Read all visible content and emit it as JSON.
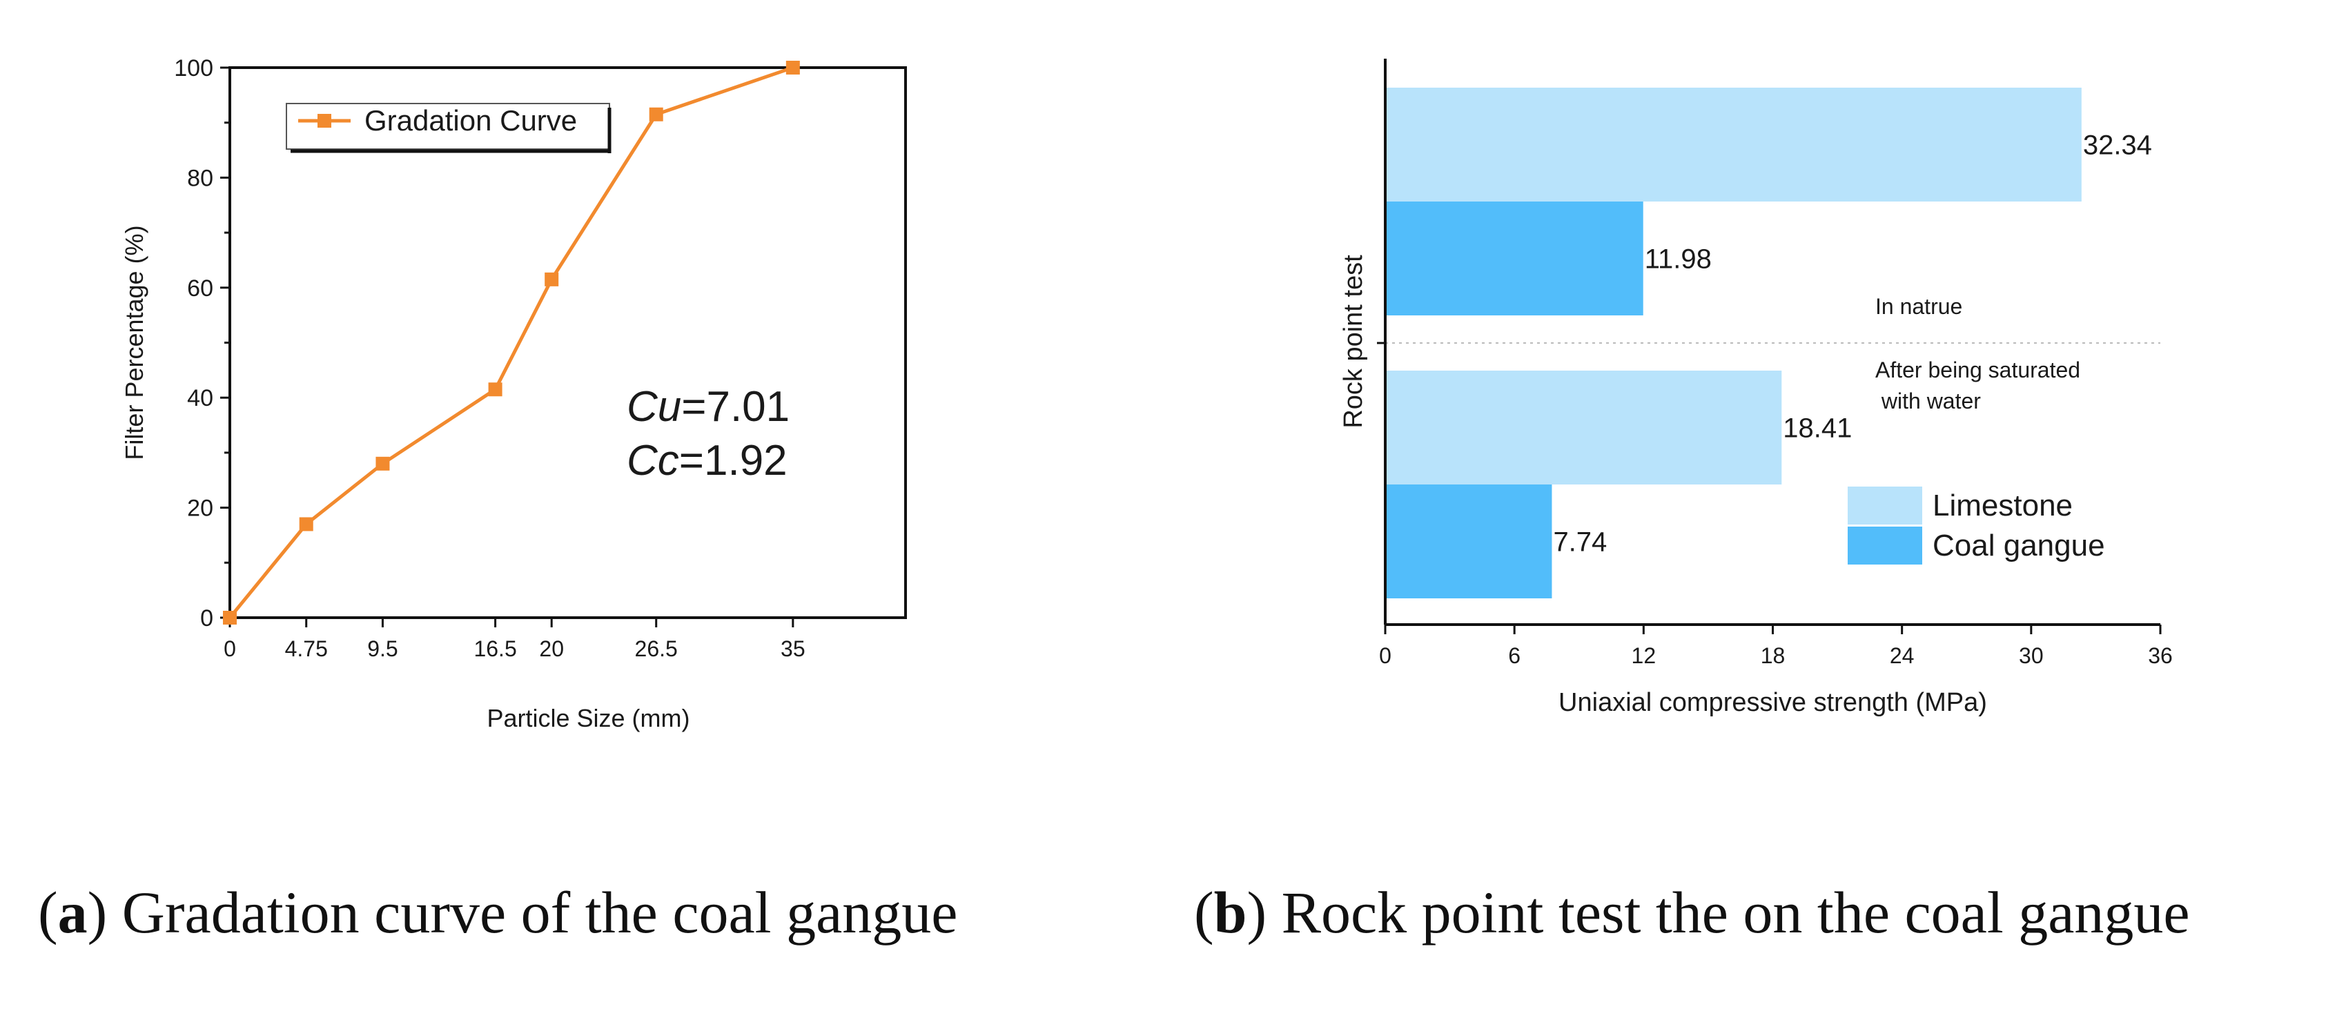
{
  "chart_data": [
    {
      "type": "line",
      "title": "",
      "xlabel": "Particle Size (mm)",
      "ylabel": "Filter Percentage (%)",
      "xlim": [
        0,
        42
      ],
      "ylim": [
        0,
        100
      ],
      "x_ticks": [
        0,
        4.75,
        9.5,
        16.5,
        20,
        26.5,
        35
      ],
      "x_tick_labels": [
        "0",
        "4.75",
        "9.5",
        "16.5",
        "20",
        "26.5",
        "35"
      ],
      "y_ticks": [
        0,
        20,
        40,
        60,
        80,
        100
      ],
      "y_tick_labels": [
        "0",
        "20",
        "40",
        "60",
        "80",
        "100"
      ],
      "series": [
        {
          "name": "Gradation Curve",
          "color": "#f28a2e",
          "marker": "square",
          "x": [
            0,
            4.75,
            9.5,
            16.5,
            20,
            26.5,
            35
          ],
          "y": [
            0,
            17,
            28,
            41.5,
            61.5,
            91.5,
            100
          ]
        }
      ],
      "legend": {
        "position": "top-left",
        "entries": [
          "Gradation Curve"
        ]
      },
      "annotations": [
        {
          "name": "Cu",
          "value": "=7.01"
        },
        {
          "name": "Cc",
          "value": "=1.92"
        }
      ]
    },
    {
      "type": "bar",
      "orientation": "horizontal",
      "xlabel": "Uniaxial compressive strength (MPa)",
      "ylabel": "Rock point test",
      "xlim": [
        0,
        36
      ],
      "x_ticks": [
        0,
        6,
        12,
        18,
        24,
        30,
        36
      ],
      "x_tick_labels": [
        "0",
        "6",
        "12",
        "18",
        "24",
        "30",
        "36"
      ],
      "groups": [
        {
          "label_lines": [
            "In natrue"
          ]
        },
        {
          "label_lines": [
            "After being saturated",
            " with water"
          ]
        }
      ],
      "series": [
        {
          "name": "Limestone",
          "color": "#b8e3fb",
          "values": [
            32.34,
            18.41
          ],
          "labels": [
            "32.34",
            "18.41"
          ]
        },
        {
          "name": "Coal gangue",
          "color": "#52bdfa",
          "values": [
            11.98,
            7.74
          ],
          "labels": [
            "11.98",
            "7.74"
          ]
        }
      ],
      "legend": {
        "position": "bottom-right",
        "entries": [
          "Limestone",
          "Coal gangue"
        ]
      }
    }
  ],
  "captions": {
    "a": {
      "letter": "a",
      "text": " Gradation curve of the coal gangue"
    },
    "b": {
      "letter": "b",
      "text": " Rock point test the on the coal gangue"
    }
  }
}
